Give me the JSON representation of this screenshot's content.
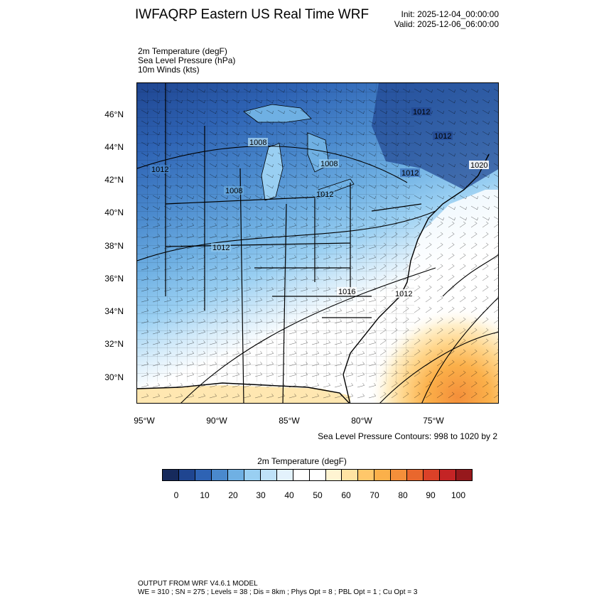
{
  "header": {
    "title": "IWFAQRP Eastern US Real Time WRF",
    "init": "Init: 2025-12-04_00:00:00",
    "valid": "Valid: 2025-12-06_06:00:00"
  },
  "fields": [
    "2m Temperature   (degF)",
    "Sea Level Pressure   (hPa)",
    "10m Winds   (kts)"
  ],
  "map": {
    "lat_labels": [
      "46°N",
      "44°N",
      "42°N",
      "40°N",
      "38°N",
      "36°N",
      "34°N",
      "32°N",
      "30°N"
    ],
    "lon_labels": [
      "95°W",
      "90°W",
      "85°W",
      "80°W",
      "75°W"
    ],
    "slp_labels": [
      "1008",
      "1012",
      "1008",
      "1008",
      "1012",
      "1012",
      "1012",
      "1012",
      "1012",
      "1016",
      "1020",
      "1012"
    ],
    "contour_note": "Sea Level Pressure Contours: 998 to 1020 by 2"
  },
  "colorbar": {
    "title": "2m Temperature  (degF)",
    "ticks": [
      "0",
      "10",
      "20",
      "30",
      "40",
      "50",
      "60",
      "70",
      "80",
      "90",
      "100"
    ],
    "colors": [
      "#162a5c",
      "#1f4590",
      "#2e63b4",
      "#4a89cd",
      "#6fb0e3",
      "#99cff2",
      "#bfe2f8",
      "#e3f2fc",
      "#ffffff",
      "#ffffff",
      "#fff4d2",
      "#ffe3a3",
      "#ffc76a",
      "#fbb04a",
      "#f48f3a",
      "#e9672d",
      "#db4128",
      "#c42425",
      "#96181c"
    ]
  },
  "footer": {
    "line1": "OUTPUT FROM WRF V4.6.1 MODEL",
    "line2": "WE = 310 ; SN = 275 ; Levels = 38 ; Dis = 8km ; Phys Opt = 8 ; PBL Opt = 1 ; Cu Opt = 3"
  }
}
